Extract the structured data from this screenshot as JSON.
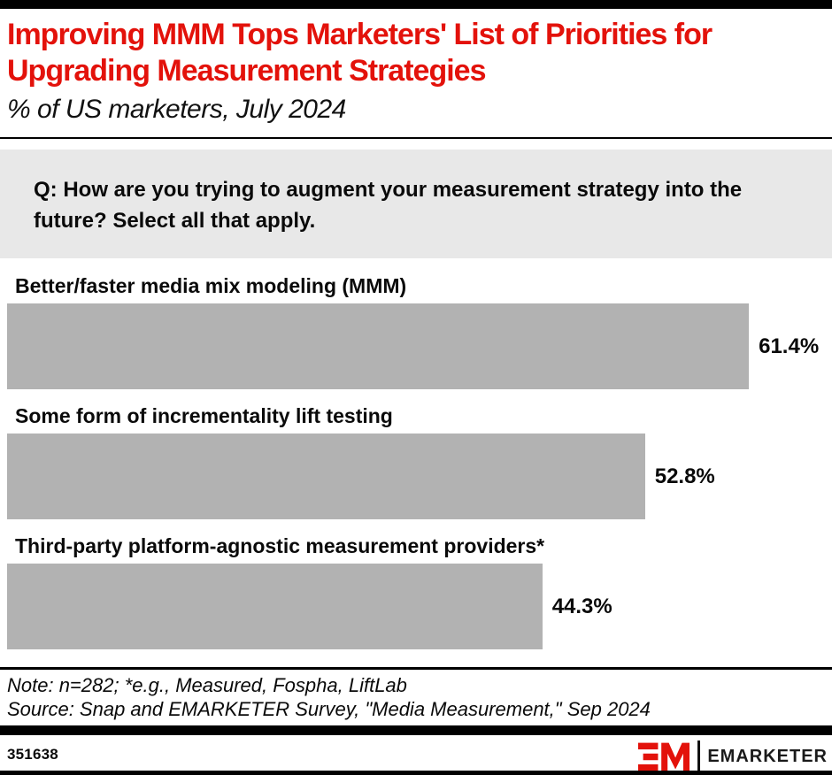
{
  "header": {
    "title": "Improving MMM Tops Marketers' List of Priorities for Upgrading Measurement Strategies",
    "subtitle": "% of US marketers, July 2024"
  },
  "question": {
    "text": "Q: How are you trying to augment your measurement strategy into the future? Select all that apply."
  },
  "chart_data": {
    "type": "bar",
    "orientation": "horizontal",
    "title": "Improving MMM Tops Marketers' List of Priorities for Upgrading Measurement Strategies",
    "subtitle": "% of US marketers, July 2024",
    "categories": [
      "Better/faster media mix modeling (MMM)",
      "Some form of incrementality lift testing",
      "Third-party platform-agnostic measurement providers*"
    ],
    "values": [
      61.4,
      52.8,
      44.3
    ],
    "value_labels": [
      "61.4%",
      "52.8%",
      "44.3%"
    ],
    "unit": "%",
    "xlabel": "",
    "ylabel": "",
    "xlim": [
      0,
      68
    ],
    "grid": false,
    "legend": false,
    "bar_color": "#b2b2b2",
    "label_position": "outside-end"
  },
  "notes": {
    "note": "Note: n=282; *e.g., Measured, Fospha, LiftLab",
    "source": "Source: Snap and EMARKETER Survey, \"Media Measurement,\" Sep 2024"
  },
  "footer": {
    "chart_id": "351638",
    "brand": "EMARKETER",
    "logo_icon": "emarketer-em-monogram",
    "accent_color": "#e3120b"
  }
}
